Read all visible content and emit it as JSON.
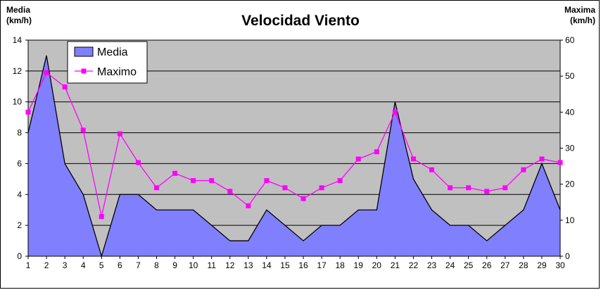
{
  "chart_data": {
    "type": "area+line",
    "title": "Velocidad Viento",
    "y_left_label": [
      "Media",
      "(km/h)"
    ],
    "y_right_label": [
      "Maxima",
      "(km/h)"
    ],
    "x": [
      1,
      2,
      3,
      4,
      5,
      6,
      7,
      8,
      9,
      10,
      11,
      12,
      13,
      14,
      15,
      16,
      17,
      18,
      19,
      20,
      21,
      22,
      23,
      24,
      25,
      26,
      27,
      28,
      29,
      30
    ],
    "y_left_range": [
      0,
      14
    ],
    "y_left_ticks": [
      0,
      2,
      4,
      6,
      8,
      10,
      12,
      14
    ],
    "y_right_range": [
      0,
      60
    ],
    "y_right_ticks": [
      0,
      10,
      20,
      30,
      40,
      50,
      60
    ],
    "grid": true,
    "legend_position": "top-left",
    "series": [
      {
        "name": "Media",
        "type": "area",
        "axis": "left",
        "color": "#8080ff",
        "values": [
          8,
          13,
          6,
          4,
          0,
          4,
          4,
          3,
          3,
          3,
          2,
          1,
          1,
          3,
          2,
          1,
          2,
          2,
          3,
          3,
          10,
          5,
          3,
          2,
          2,
          1,
          2,
          3,
          6,
          3
        ]
      },
      {
        "name": "Maximo",
        "type": "line",
        "axis": "right",
        "color": "#ff00ff",
        "values": [
          40,
          51,
          47,
          35,
          11,
          34,
          26,
          19,
          23,
          21,
          21,
          18,
          14,
          21,
          19,
          16,
          19,
          21,
          27,
          29,
          40,
          27,
          24,
          19,
          19,
          18,
          19,
          24,
          27,
          26
        ]
      }
    ]
  },
  "colors": {
    "plot_bg": "#c0c0c0",
    "area_fill": "#8080ff",
    "area_stroke": "#000000",
    "line_color": "#ff00ff"
  }
}
